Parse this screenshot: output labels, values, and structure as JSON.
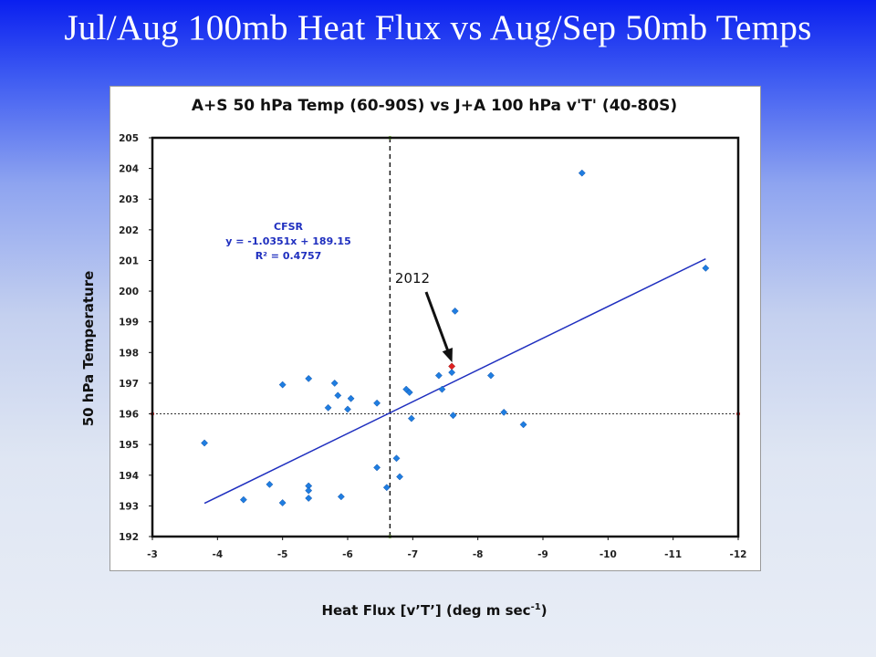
{
  "slide": {
    "title": "Jul/Aug 100mb Heat Flux vs Aug/Sep 50mb Temps"
  },
  "chart_data": {
    "type": "scatter",
    "title": "A+S 50 hPa Temp (60-90S) vs J+A 100 hPa v'T' (40-80S)",
    "xlabel_main": "Heat Flux [v’T’] (deg m sec",
    "xlabel_sup": "-1",
    "xlabel_end": ")",
    "ylabel": "50 hPa Temperature",
    "xlim": [
      -3,
      -12
    ],
    "ylim": [
      192,
      205
    ],
    "x_ticks": [
      "-3",
      "-4",
      "-5",
      "-6",
      "-7",
      "-8",
      "-9",
      "-10",
      "-11",
      "-12"
    ],
    "y_ticks": [
      "192",
      "193",
      "194",
      "195",
      "196",
      "197",
      "198",
      "199",
      "200",
      "201",
      "202",
      "203",
      "204",
      "205"
    ],
    "points": [
      {
        "x": -3.8,
        "y": 195.05
      },
      {
        "x": -4.4,
        "y": 193.2
      },
      {
        "x": -4.8,
        "y": 193.7
      },
      {
        "x": -5.0,
        "y": 196.95
      },
      {
        "x": -5.0,
        "y": 193.1
      },
      {
        "x": -5.4,
        "y": 197.15
      },
      {
        "x": -5.4,
        "y": 193.65
      },
      {
        "x": -5.4,
        "y": 193.5
      },
      {
        "x": -5.4,
        "y": 193.25
      },
      {
        "x": -5.7,
        "y": 196.2
      },
      {
        "x": -5.8,
        "y": 197.0
      },
      {
        "x": -5.85,
        "y": 196.6
      },
      {
        "x": -5.9,
        "y": 193.3
      },
      {
        "x": -6.0,
        "y": 196.15
      },
      {
        "x": -6.05,
        "y": 196.5
      },
      {
        "x": -6.45,
        "y": 196.35
      },
      {
        "x": -6.45,
        "y": 194.25
      },
      {
        "x": -6.6,
        "y": 193.6
      },
      {
        "x": -6.75,
        "y": 194.55
      },
      {
        "x": -6.8,
        "y": 193.95
      },
      {
        "x": -6.9,
        "y": 196.8
      },
      {
        "x": -6.95,
        "y": 196.7
      },
      {
        "x": -6.98,
        "y": 195.85
      },
      {
        "x": -7.4,
        "y": 197.25
      },
      {
        "x": -7.45,
        "y": 196.8
      },
      {
        "x": -7.6,
        "y": 197.35
      },
      {
        "x": -7.62,
        "y": 195.95
      },
      {
        "x": -7.65,
        "y": 199.35
      },
      {
        "x": -8.2,
        "y": 197.25
      },
      {
        "x": -8.4,
        "y": 196.05
      },
      {
        "x": -8.7,
        "y": 195.65
      },
      {
        "x": -9.6,
        "y": 203.85
      },
      {
        "x": -11.5,
        "y": 200.75
      }
    ],
    "highlight_point": {
      "x": -7.6,
      "y": 197.55,
      "label": "2012",
      "color": "#e02020"
    },
    "trendline": {
      "x_start": -3.8,
      "x_end": -11.5,
      "slope": -1.0351,
      "intercept": 189.15
    },
    "equation": [
      "CFSR",
      "y = -1.0351x + 189.15",
      "R² = 0.4757"
    ],
    "ref_vertical_x": -6.65,
    "ref_horizontal_y": 196,
    "colors": {
      "points": "#1f7de0",
      "trendline": "#1f2fbf",
      "equation": "#1f2fbf",
      "highlight": "#e02020"
    }
  }
}
